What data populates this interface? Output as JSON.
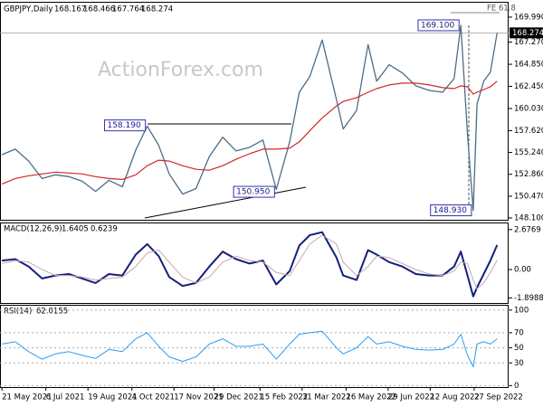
{
  "chart_data": [
    {
      "type": "line",
      "symbol": "GBPJPY,Daily",
      "ohlc": [
        168.167,
        168.466,
        167.764,
        168.274
      ],
      "watermark": "ActionForex.com",
      "fe_label": "FE 61.8",
      "xlim": [
        "2021-05-19",
        "2022-11-02"
      ],
      "x": [
        "2021-05-21",
        "2021-06-04",
        "2021-06-18",
        "2021-07-02",
        "2021-07-16",
        "2021-07-30",
        "2021-08-13",
        "2021-08-27",
        "2021-09-10",
        "2021-09-24",
        "2021-10-08",
        "2021-10-20",
        "2021-11-01",
        "2021-11-12",
        "2021-11-26",
        "2021-12-10",
        "2021-12-24",
        "2022-01-07",
        "2022-01-21",
        "2022-02-04",
        "2022-02-18",
        "2022-03-04",
        "2022-03-18",
        "2022-03-28",
        "2022-04-08",
        "2022-04-21",
        "2022-05-06",
        "2022-05-13",
        "2022-05-27",
        "2022-06-08",
        "2022-06-17",
        "2022-06-30",
        "2022-07-14",
        "2022-07-28",
        "2022-08-11",
        "2022-08-25",
        "2022-09-06",
        "2022-09-13",
        "2022-09-20",
        "2022-09-26",
        "2022-09-30",
        "2022-10-07",
        "2022-10-14",
        "2022-10-21"
      ],
      "series": [
        {
          "color": "#4a6d88",
          "width": 1.3,
          "values": [
            155.0,
            155.6,
            154.3,
            152.4,
            152.8,
            152.6,
            152.1,
            151.0,
            152.2,
            151.5,
            155.5,
            158.1,
            156.0,
            152.9,
            150.7,
            151.3,
            154.8,
            156.9,
            155.4,
            155.8,
            156.6,
            151.2,
            156.4,
            161.8,
            163.5,
            167.5,
            161.0,
            157.8,
            159.8,
            167.0,
            163.0,
            164.8,
            163.9,
            162.5,
            162.0,
            161.8,
            163.3,
            169.1,
            157.2,
            148.93,
            160.5,
            163.0,
            164.0,
            168.274
          ]
        },
        {
          "color": "#d02828",
          "width": 1.2,
          "values": [
            151.8,
            152.4,
            152.7,
            152.9,
            153.1,
            153.0,
            152.9,
            152.6,
            152.4,
            152.3,
            152.8,
            153.8,
            154.4,
            154.3,
            153.8,
            153.4,
            153.3,
            153.8,
            154.5,
            155.1,
            155.6,
            155.6,
            155.7,
            156.4,
            157.6,
            159.0,
            160.3,
            160.8,
            161.2,
            161.8,
            162.2,
            162.6,
            162.8,
            162.8,
            162.6,
            162.3,
            162.2,
            162.5,
            162.4,
            161.6,
            161.8,
            162.1,
            162.4,
            163.0
          ]
        }
      ],
      "ylim": [
        147.9,
        171.66
      ],
      "yticks": [
        {
          "value": 169.99,
          "label": "169.990"
        },
        {
          "value": 167.27,
          "label": "167.270"
        },
        {
          "value": 164.85,
          "label": "164.850"
        },
        {
          "value": 162.45,
          "label": "162.450"
        },
        {
          "value": 160.03,
          "label": "160.030"
        },
        {
          "value": 157.62,
          "label": "157.620"
        },
        {
          "value": 155.24,
          "label": "155.240"
        },
        {
          "value": 152.86,
          "label": "152.860"
        },
        {
          "value": 150.47,
          "label": "150.470"
        },
        {
          "value": 148.1,
          "label": "148.100"
        }
      ],
      "annotations": [
        {
          "x": "2021-10-20",
          "value": 158.19,
          "label": "158.190"
        },
        {
          "x": "2022-03-04",
          "value": 150.95,
          "label": "150.950"
        },
        {
          "x": "2022-09-13",
          "value": 169.1,
          "label": "169.100"
        },
        {
          "x": "2022-09-26",
          "value": 148.93,
          "label": "148.930"
        }
      ]
    },
    {
      "type": "line",
      "title": "MACD(12,26,9)",
      "series": [
        {
          "color": "#14207a",
          "width": 2,
          "values": [
            0.6,
            0.7,
            0.2,
            -0.6,
            -0.4,
            -0.3,
            -0.6,
            -0.9,
            -0.3,
            -0.4,
            1.0,
            1.7,
            0.9,
            -0.5,
            -1.1,
            -0.9,
            0.2,
            1.2,
            0.7,
            0.4,
            0.6,
            -1.0,
            -0.1,
            1.6,
            2.3,
            2.5,
            0.8,
            -0.4,
            -0.7,
            1.3,
            1.0,
            0.5,
            0.2,
            -0.3,
            -0.4,
            -0.4,
            0.2,
            1.2,
            -0.4,
            -1.8,
            -1.2,
            -0.3,
            0.6,
            1.6405
          ]
        },
        {
          "color": "#c8a8b0",
          "width": 1,
          "values": [
            0.4,
            0.6,
            0.5,
            0.0,
            -0.4,
            -0.4,
            -0.5,
            -0.7,
            -0.6,
            -0.5,
            0.2,
            1.1,
            1.3,
            0.5,
            -0.5,
            -0.9,
            -0.5,
            0.5,
            0.9,
            0.6,
            0.5,
            -0.2,
            -0.4,
            0.6,
            1.7,
            2.3,
            1.7,
            0.5,
            -0.4,
            0.2,
            0.9,
            0.8,
            0.4,
            0.0,
            -0.3,
            -0.4,
            -0.1,
            0.5,
            0.4,
            -0.7,
            -1.3,
            -0.9,
            -0.2,
            0.6239
          ]
        }
      ],
      "ylim": [
        -2.24,
        3.15
      ],
      "yticks": [
        2.6769,
        {
          "value": 0,
          "label": "0.00"
        },
        -1.8988
      ]
    },
    {
      "type": "line",
      "title": "RSI(14)",
      "series": [
        {
          "color": "#2a9df4",
          "width": 1,
          "values": [
            55,
            58,
            45,
            35,
            42,
            45,
            40,
            36,
            48,
            45,
            62,
            70,
            52,
            38,
            32,
            38,
            55,
            62,
            52,
            52,
            55,
            35,
            55,
            68,
            70,
            72,
            50,
            42,
            50,
            65,
            55,
            58,
            52,
            48,
            47,
            48,
            55,
            68,
            40,
            25,
            55,
            58,
            55,
            62.0155
          ]
        }
      ],
      "ylim": [
        -2,
        107
      ],
      "yticks": [
        100,
        70,
        50,
        30,
        0
      ],
      "xticks": [
        {
          "value": "2021-05-21",
          "label": "21 May 2021"
        },
        {
          "value": "2021-07-06",
          "label": "6 Jul 2021"
        },
        {
          "value": "2021-08-19",
          "label": "19 Aug 2021"
        },
        {
          "value": "2021-10-04",
          "label": "4 Oct 2021"
        },
        {
          "value": "2021-11-17",
          "label": "17 Nov 2021"
        },
        {
          "value": "2021-12-29",
          "label": "29 Dec 2021"
        },
        {
          "value": "2022-02-15",
          "label": "15 Feb 2022"
        },
        {
          "value": "2022-03-31",
          "label": "31 Mar 2022"
        },
        {
          "value": "2022-05-16",
          "label": "16 May 2022"
        },
        {
          "value": "2022-06-29",
          "label": "29 Jun 2022"
        },
        {
          "value": "2022-08-12",
          "label": "12 Aug 2022"
        },
        {
          "value": "2022-09-27",
          "label": "27 Sep 2022"
        }
      ]
    }
  ]
}
